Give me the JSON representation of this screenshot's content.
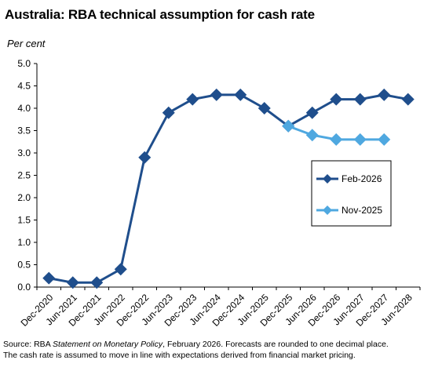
{
  "title": "Australia: RBA technical assumption for cash rate",
  "unit_label": "Per cent",
  "source": {
    "prefix": "Source: RBA ",
    "publication": "Statement on Monetary Policy",
    "suffix": ", February 2026. Forecasts are rounded to one decimal place.",
    "line2": "The cash rate is assumed to move in line with expectations derived from financial market pricing."
  },
  "colors": {
    "feb_2026": "#1f4e8c",
    "nov_2025": "#4fa8e0",
    "axis": "#000000"
  },
  "chart_data": {
    "type": "line",
    "title": "Australia: RBA technical assumption for cash rate",
    "ylabel": "Per cent",
    "xlabel": "",
    "categories": [
      "Dec-2020",
      "Jun-2021",
      "Dec-2021",
      "Jun-2022",
      "Dec-2022",
      "Jun-2023",
      "Dec-2023",
      "Jun-2024",
      "Dec-2024",
      "Jun-2025",
      "Dec-2025",
      "Jun-2026",
      "Dec-2026",
      "Jun-2027",
      "Dec-2027",
      "Jun-2028"
    ],
    "ylim": [
      0,
      5
    ],
    "yticks": [
      "0.0",
      "0.5",
      "1.0",
      "1.5",
      "2.0",
      "2.5",
      "3.0",
      "3.5",
      "4.0",
      "4.5",
      "5.0"
    ],
    "grid": false,
    "legend_position": "right",
    "series": [
      {
        "name": "Feb-2026",
        "color": "#1f4e8c",
        "marker": "diamond",
        "values": [
          0.2,
          0.1,
          0.1,
          0.4,
          2.9,
          3.9,
          4.2,
          4.3,
          4.3,
          4.0,
          3.6,
          3.9,
          4.2,
          4.2,
          4.3,
          4.2
        ]
      },
      {
        "name": "Nov-2025",
        "color": "#4fa8e0",
        "marker": "diamond",
        "values": [
          null,
          null,
          null,
          null,
          null,
          null,
          null,
          null,
          null,
          null,
          3.6,
          3.4,
          3.3,
          3.3,
          3.3,
          null
        ]
      }
    ]
  }
}
